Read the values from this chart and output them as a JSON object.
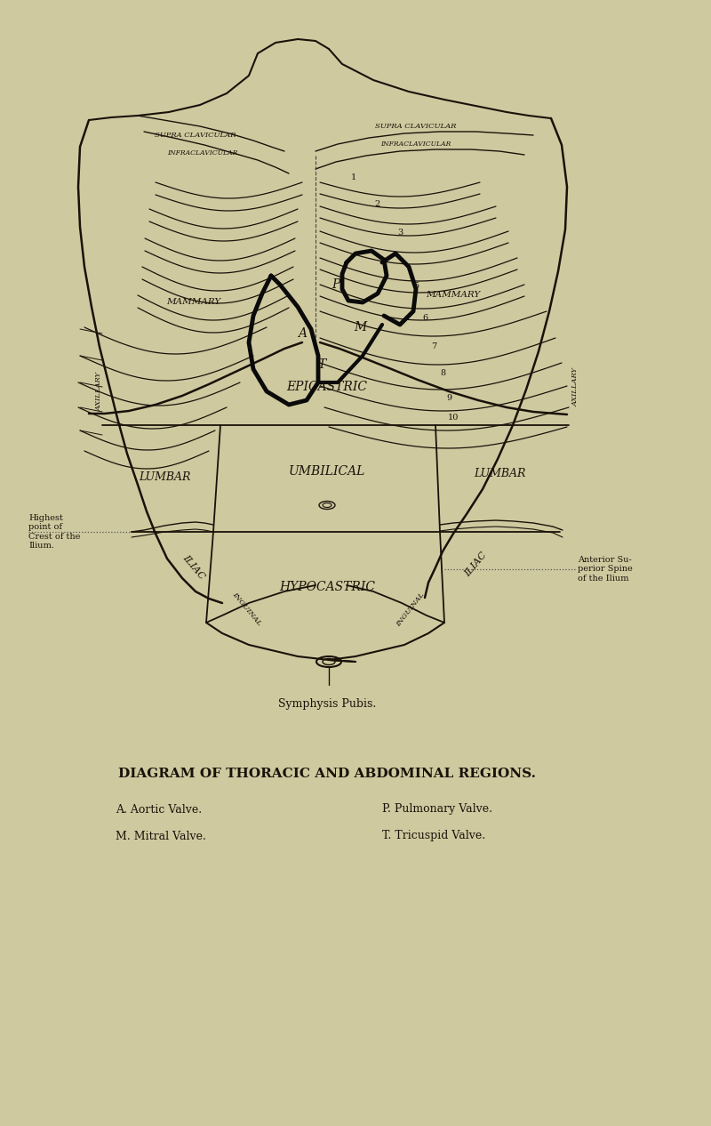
{
  "bg_color": "#cfc9a0",
  "line_color": "#1a1209",
  "title": "DIAGRAM OF THORACIC AND ABDOMINAL REGIONS.",
  "caption_left1": "A. Aortic Valve.",
  "caption_left2": "M. Mitral Valve.",
  "caption_right1": "P. Pulmonary Valve.",
  "caption_right2": "T. Tricuspid Valve.",
  "symphysis_label": "Symphysis Pubis.",
  "highest_point_label": "Highest\npoint of\nCrest of the\nIlium.",
  "anterior_label": "Anterior Su-\nperior Spine\nof the Ilium"
}
